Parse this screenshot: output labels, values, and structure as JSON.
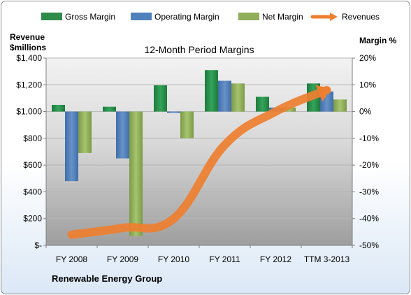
{
  "chart_data": {
    "type": "bar",
    "title": "12-Month Period Margins",
    "company_label": "Renewable Energy Group",
    "left_axis_title_1": "Revenue",
    "left_axis_title_2": "$millions",
    "right_axis_title": "Margin %",
    "categories": [
      "FY 2008",
      "FY 2009",
      "FY 2010",
      "FY 2011",
      "FY 2012",
      "TTM 3-2013"
    ],
    "left_axis": {
      "min": 0,
      "max": 1400,
      "ticks": [
        0,
        200,
        400,
        600,
        800,
        1000,
        1200,
        1400
      ],
      "tick_labels": [
        "$-",
        "$200",
        "$400",
        "$600",
        "$800",
        "$1,000",
        "$1,200",
        "$1,400"
      ]
    },
    "right_axis": {
      "min": -50,
      "max": 20,
      "ticks": [
        -50,
        -40,
        -30,
        -20,
        -10,
        0,
        10,
        20
      ],
      "tick_labels": [
        "-50%",
        "-40%",
        "-30%",
        "-20%",
        "-10%",
        "0%",
        "10%",
        "20%"
      ]
    },
    "series": [
      {
        "name": "Gross Margin",
        "color": "#2e8b4a",
        "values": [
          2.5,
          1.8,
          9.8,
          15.5,
          5.5,
          10.5
        ]
      },
      {
        "name": "Operating Margin",
        "color": "#4f81bd",
        "values": [
          -26,
          -17.5,
          -0.5,
          11.5,
          1.5,
          7.5
        ]
      },
      {
        "name": "Net Margin",
        "color": "#8fae5a",
        "values": [
          -15.5,
          -46.5,
          -10,
          10.5,
          1.5,
          4.5
        ]
      }
    ],
    "line_series": {
      "name": "Revenues",
      "color": "#ee7f30",
      "values": [
        80,
        130,
        200,
        750,
        1000,
        1160
      ]
    },
    "grid": true,
    "legend_position": "top"
  }
}
